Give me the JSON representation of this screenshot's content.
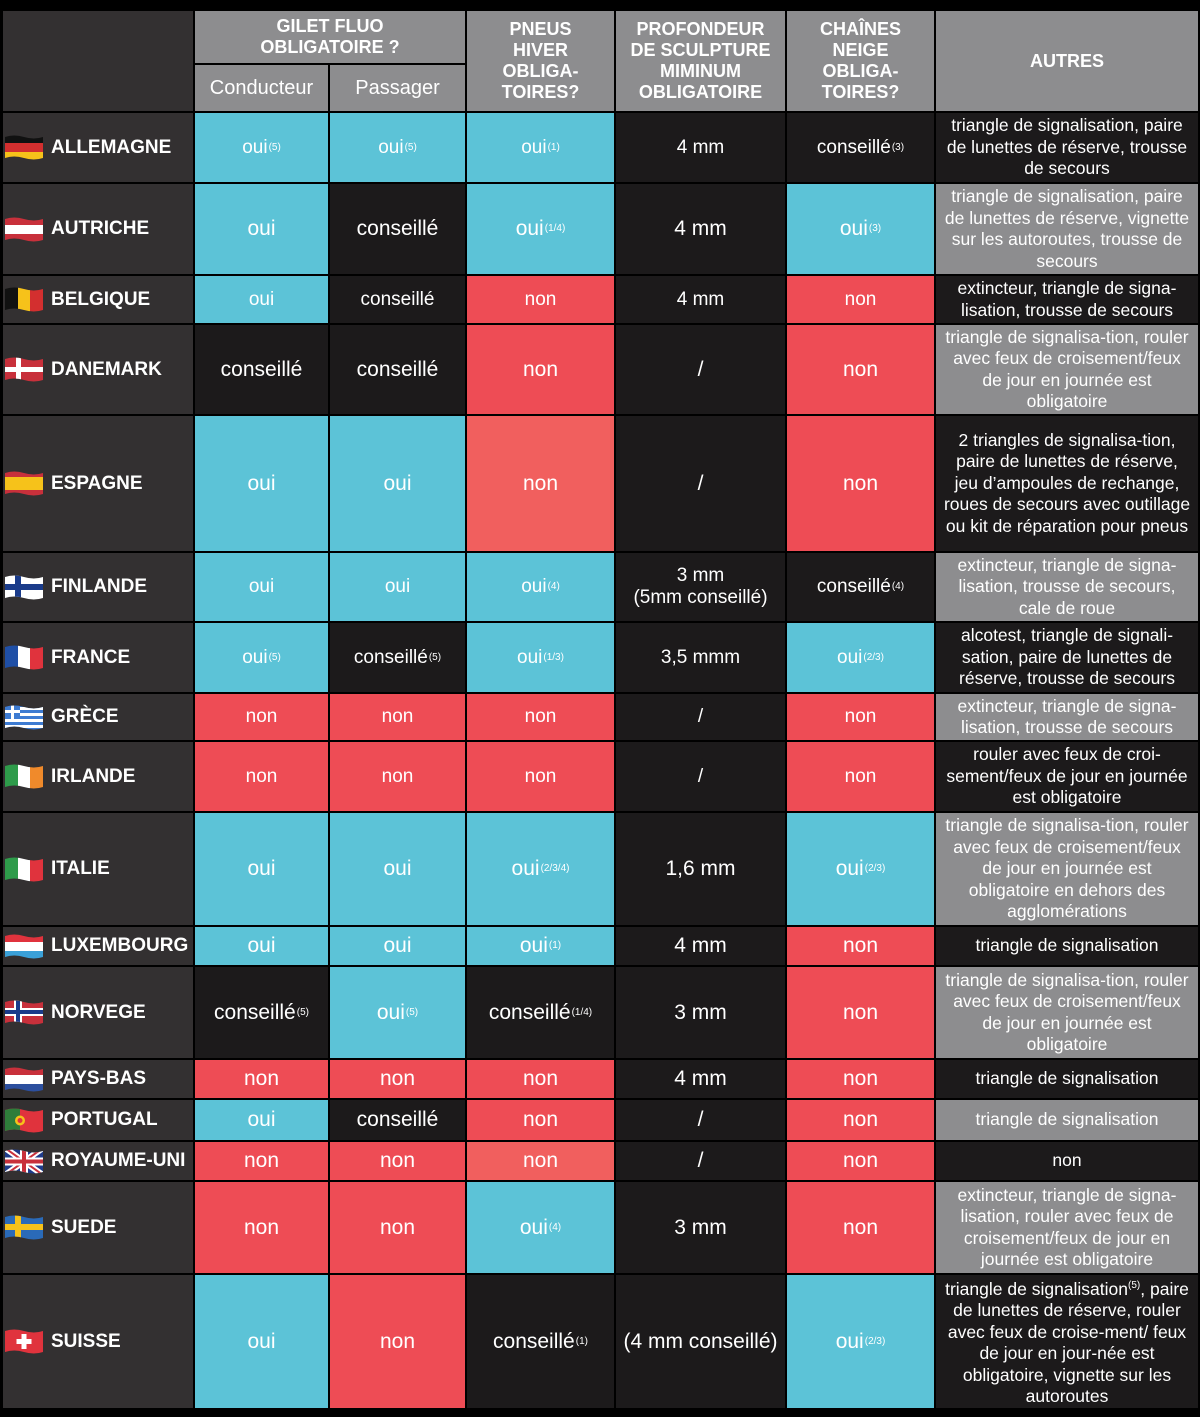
{
  "headers": {
    "gilet": "GILET FLUO OBLIGATOIRE ?",
    "conducteur": "Conducteur",
    "passager": "Passager",
    "pneus": "PNEUS HIVER OBLIGA-TOIRES?",
    "profondeur": "PROFONDEUR DE SCULPTURE MIMINUM OBLIGATOIRE",
    "chaines": "CHAÎNES NEIGE OBLIGA-TOIRES?",
    "autres": "AUTRES"
  },
  "rows": [
    {
      "country": "ALLEMAGNE",
      "flag": "germany-flag",
      "cells": [
        {
          "t": "oui",
          "s": "(5)",
          "c": "b"
        },
        {
          "t": "oui",
          "s": "(5)",
          "c": "b"
        },
        {
          "t": "oui",
          "s": "(1)",
          "c": "b"
        },
        {
          "t": "4 mm",
          "s": "",
          "c": "k"
        },
        {
          "t": "conseillé",
          "s": "(3)",
          "c": "k"
        },
        {
          "t": "triangle de signalisation, paire de lunettes de réserve, trousse de secours",
          "c": "k"
        }
      ]
    },
    {
      "country": "AUTRICHE",
      "flag": "austria-flag",
      "cells": [
        {
          "t": "oui",
          "s": "",
          "c": "b"
        },
        {
          "t": "conseillé",
          "s": "",
          "c": "k"
        },
        {
          "t": "oui",
          "s": "(1/4)",
          "c": "b"
        },
        {
          "t": "4 mm",
          "s": "",
          "c": "k"
        },
        {
          "t": "oui",
          "s": "(3)",
          "c": "b"
        },
        {
          "t": "triangle de signalisation, paire de lunettes de réserve, vignette sur les autoroutes, trousse de secours",
          "c": "g"
        }
      ]
    },
    {
      "country": "BELGIQUE",
      "flag": "belgium-flag",
      "cells": [
        {
          "t": "oui",
          "s": "",
          "c": "b"
        },
        {
          "t": "conseillé",
          "s": "",
          "c": "k"
        },
        {
          "t": "non",
          "s": "",
          "c": "r"
        },
        {
          "t": "4 mm",
          "s": "",
          "c": "k"
        },
        {
          "t": "non",
          "s": "",
          "c": "r"
        },
        {
          "t": "extincteur, triangle de signa-lisation, trousse de secours",
          "c": "k"
        }
      ]
    },
    {
      "country": "DANEMARK",
      "flag": "denmark-flag",
      "cells": [
        {
          "t": "conseillé",
          "s": "",
          "c": "k"
        },
        {
          "t": "conseillé",
          "s": "",
          "c": "k"
        },
        {
          "t": "non",
          "s": "",
          "c": "r"
        },
        {
          "t": "/",
          "s": "",
          "c": "k"
        },
        {
          "t": "non",
          "s": "",
          "c": "r"
        },
        {
          "t": "triangle de signalisa-tion, rouler avec feux de croisement/feux de jour en journée est obligatoire",
          "c": "g"
        }
      ]
    },
    {
      "country": "ESPAGNE",
      "flag": "spain-flag",
      "cells": [
        {
          "t": "oui",
          "s": "",
          "c": "b"
        },
        {
          "t": "oui",
          "s": "",
          "c": "b"
        },
        {
          "t": "non",
          "s": "",
          "c": "s"
        },
        {
          "t": "/",
          "s": "",
          "c": "k"
        },
        {
          "t": "non",
          "s": "",
          "c": "r"
        },
        {
          "t": "2 triangles de signalisa-tion, paire de lunettes de réserve, jeu d’ampoules de rechange, roues de secours avec outillage ou kit de réparation pour pneus",
          "c": "k"
        }
      ]
    },
    {
      "country": "FINLANDE",
      "flag": "finland-flag",
      "cells": [
        {
          "t": "oui",
          "s": "",
          "c": "b"
        },
        {
          "t": "oui",
          "s": "",
          "c": "b"
        },
        {
          "t": "oui",
          "s": "(4)",
          "c": "b"
        },
        {
          "t": "3 mm\n(5mm conseillé)",
          "s": "",
          "c": "k"
        },
        {
          "t": "conseillé",
          "s": "(4)",
          "c": "k"
        },
        {
          "t": "extincteur, triangle de signa-lisation, trousse de secours, cale de roue",
          "c": "g"
        }
      ]
    },
    {
      "country": "FRANCE",
      "flag": "france-flag",
      "cells": [
        {
          "t": "oui",
          "s": "(5)",
          "c": "b"
        },
        {
          "t": "conseillé",
          "s": "(5)",
          "c": "k"
        },
        {
          "t": "oui",
          "s": "(1/3)",
          "c": "b"
        },
        {
          "t": "3,5 mmm",
          "s": "",
          "c": "k"
        },
        {
          "t": "oui",
          "s": "(2/3)",
          "c": "b"
        },
        {
          "t": "alcotest, triangle de signali-sation, paire de lunettes de réserve, trousse de secours",
          "c": "k"
        }
      ]
    },
    {
      "country": "GRÈCE",
      "flag": "greece-flag",
      "cells": [
        {
          "t": "non",
          "s": "",
          "c": "r"
        },
        {
          "t": "non",
          "s": "",
          "c": "r"
        },
        {
          "t": "non",
          "s": "",
          "c": "r"
        },
        {
          "t": "/",
          "s": "",
          "c": "k"
        },
        {
          "t": "non",
          "s": "",
          "c": "r"
        },
        {
          "t": "extincteur, triangle de signa-lisation, trousse de secours",
          "c": "g"
        }
      ]
    },
    {
      "country": "IRLANDE",
      "flag": "ireland-flag",
      "cells": [
        {
          "t": "non",
          "s": "",
          "c": "r"
        },
        {
          "t": "non",
          "s": "",
          "c": "r"
        },
        {
          "t": "non",
          "s": "",
          "c": "r"
        },
        {
          "t": "/",
          "s": "",
          "c": "k"
        },
        {
          "t": "non",
          "s": "",
          "c": "r"
        },
        {
          "t": "rouler avec feux de croi-sement/feux de jour en journée est obligatoire",
          "c": "k"
        }
      ]
    },
    {
      "country": "ITALIE",
      "flag": "italy-flag",
      "cells": [
        {
          "t": "oui",
          "s": "",
          "c": "b"
        },
        {
          "t": "oui",
          "s": "",
          "c": "b"
        },
        {
          "t": "oui",
          "s": "(2/3/4)",
          "c": "b"
        },
        {
          "t": "1,6 mm",
          "s": "",
          "c": "k"
        },
        {
          "t": "oui",
          "s": "(2/3)",
          "c": "b"
        },
        {
          "t": "triangle de signalisa-tion, rouler avec feux de croisement/feux de jour en journée est obligatoire en dehors des agglomérations",
          "c": "g"
        }
      ]
    },
    {
      "country": "LUXEMBOURG",
      "flag": "luxembourg-flag",
      "cells": [
        {
          "t": "oui",
          "s": "",
          "c": "b"
        },
        {
          "t": "oui",
          "s": "",
          "c": "b"
        },
        {
          "t": "oui",
          "s": "(1)",
          "c": "b"
        },
        {
          "t": "4 mm",
          "s": "",
          "c": "k"
        },
        {
          "t": "non",
          "s": "",
          "c": "r"
        },
        {
          "t": "triangle de signalisation",
          "c": "k"
        }
      ]
    },
    {
      "country": "NORVEGE",
      "flag": "norway-flag",
      "cells": [
        {
          "t": "conseillé",
          "s": "(5)",
          "c": "k"
        },
        {
          "t": "oui",
          "s": "(5)",
          "c": "b"
        },
        {
          "t": "conseillé",
          "s": "(1/4)",
          "c": "k"
        },
        {
          "t": "3 mm",
          "s": "",
          "c": "k"
        },
        {
          "t": "non",
          "s": "",
          "c": "r"
        },
        {
          "t": "triangle de signalisa-tion, rouler avec feux de croisement/feux de jour en journée est obligatoire",
          "c": "g"
        }
      ]
    },
    {
      "country": "PAYS-BAS",
      "flag": "netherlands-flag",
      "cells": [
        {
          "t": "non",
          "s": "",
          "c": "r"
        },
        {
          "t": "non",
          "s": "",
          "c": "r"
        },
        {
          "t": "non",
          "s": "",
          "c": "r"
        },
        {
          "t": "4 mm",
          "s": "",
          "c": "k"
        },
        {
          "t": "non",
          "s": "",
          "c": "r"
        },
        {
          "t": "triangle de signalisation",
          "c": "k"
        }
      ]
    },
    {
      "country": "PORTUGAL",
      "flag": "portugal-flag",
      "cells": [
        {
          "t": "oui",
          "s": "",
          "c": "b"
        },
        {
          "t": "conseillé",
          "s": "",
          "c": "k"
        },
        {
          "t": "non",
          "s": "",
          "c": "r"
        },
        {
          "t": "/",
          "s": "",
          "c": "k"
        },
        {
          "t": "non",
          "s": "",
          "c": "r"
        },
        {
          "t": "triangle de signalisation",
          "c": "g"
        }
      ]
    },
    {
      "country": "ROYAUME-UNI",
      "flag": "uk-flag",
      "cells": [
        {
          "t": "non",
          "s": "",
          "c": "r"
        },
        {
          "t": "non",
          "s": "",
          "c": "r"
        },
        {
          "t": "non",
          "s": "",
          "c": "s"
        },
        {
          "t": "/",
          "s": "",
          "c": "k"
        },
        {
          "t": "non",
          "s": "",
          "c": "r"
        },
        {
          "t": "non",
          "c": "k"
        }
      ]
    },
    {
      "country": "SUEDE",
      "flag": "sweden-flag",
      "cells": [
        {
          "t": "non",
          "s": "",
          "c": "r"
        },
        {
          "t": "non",
          "s": "",
          "c": "r"
        },
        {
          "t": "oui",
          "s": "(4)",
          "c": "b"
        },
        {
          "t": "3 mm",
          "s": "",
          "c": "k"
        },
        {
          "t": "non",
          "s": "",
          "c": "r"
        },
        {
          "t": "extincteur, triangle de signa-lisation, rouler avec feux de croisement/feux de jour en journée est obligatoire",
          "c": "g"
        }
      ]
    },
    {
      "country": "SUISSE",
      "flag": "switzerland-flag",
      "cells": [
        {
          "t": "oui",
          "s": "",
          "c": "b"
        },
        {
          "t": "non",
          "s": "",
          "c": "r"
        },
        {
          "t": "conseillé",
          "s": "(1)",
          "c": "k"
        },
        {
          "t": "(4 mm conseillé)",
          "s": "",
          "c": "k"
        },
        {
          "t": "oui",
          "s": "(2/3)",
          "c": "b"
        },
        {
          "t": "triangle de signalisation(5), paire de lunettes de réserve, rouler avec feux de croise-ment/ feux de jour en jour-née est obligatoire, vignette sur les autoroutes",
          "c": "k"
        }
      ]
    }
  ],
  "colors": {
    "b": "#5cc3d7",
    "k": "#1c1a1b",
    "r": "#ee4c55",
    "s": "#f15f5e",
    "g": "#8d8d8f",
    "header": "#8d8d8f",
    "country": "#333031"
  }
}
